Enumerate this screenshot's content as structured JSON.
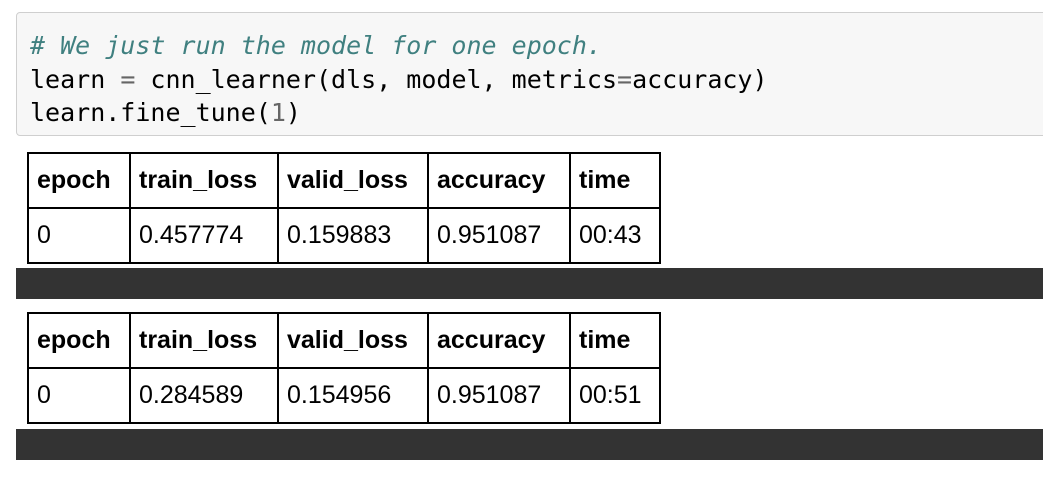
{
  "code": {
    "line1_comment": "# We just run the model for one epoch.",
    "line2_a": "learn ",
    "line2_eq": "=",
    "line2_b": " cnn_learner(dls, model, metrics",
    "line2_eq2": "=",
    "line2_c": "accuracy)",
    "line3_a": "learn.fine_tune(",
    "line3_num": "1",
    "line3_b": ")"
  },
  "tables": [
    {
      "headers": [
        "epoch",
        "train_loss",
        "valid_loss",
        "accuracy",
        "time"
      ],
      "rows": [
        [
          "0",
          "0.457774",
          "0.159883",
          "0.951087",
          "00:43"
        ]
      ]
    },
    {
      "headers": [
        "epoch",
        "train_loss",
        "valid_loss",
        "accuracy",
        "time"
      ],
      "rows": [
        [
          "0",
          "0.284589",
          "0.154956",
          "0.951087",
          "00:51"
        ]
      ]
    }
  ],
  "colors": {
    "comment": "#408080",
    "progress_bar": "#333333",
    "code_background": "#f7f7f7"
  }
}
